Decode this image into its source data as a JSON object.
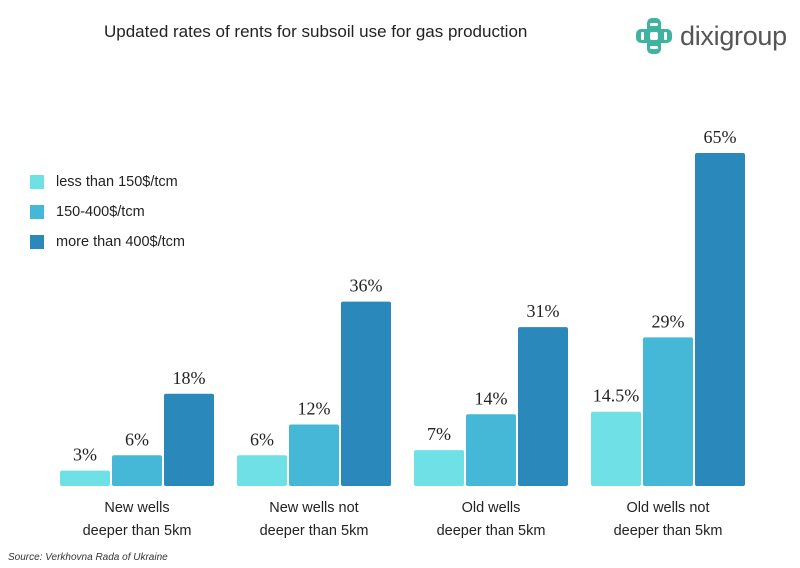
{
  "chart_data": {
    "type": "bar",
    "title": "Updated rates of rents for subsoil use for gas production",
    "categories": [
      [
        "New wells",
        "deeper than 5km"
      ],
      [
        "New wells not",
        "deeper than 5km"
      ],
      [
        "Old wells",
        "deeper than 5km"
      ],
      [
        "Old wells not",
        "deeper than 5km"
      ]
    ],
    "series": [
      {
        "name": "less than 150$/tcm",
        "color": "#6ee0e6",
        "values": [
          3,
          6,
          7,
          14.5
        ],
        "labels": [
          "3%",
          "6%",
          "7%",
          "14.5%"
        ]
      },
      {
        "name": "150-400$/tcm",
        "color": "#44b8d6",
        "values": [
          6,
          12,
          14,
          29
        ],
        "labels": [
          "6%",
          "12%",
          "14%",
          "29%"
        ]
      },
      {
        "name": "more than 400$/tcm",
        "color": "#2a88ba",
        "values": [
          18,
          36,
          31,
          65
        ],
        "labels": [
          "18%",
          "36%",
          "31%",
          "65%"
        ]
      }
    ],
    "ylim": [
      0,
      65
    ],
    "grid": false,
    "legend_position": "left"
  },
  "logo": {
    "text": "dixigroup"
  },
  "source": "Source: Verkhovna Rada of Ukraine"
}
